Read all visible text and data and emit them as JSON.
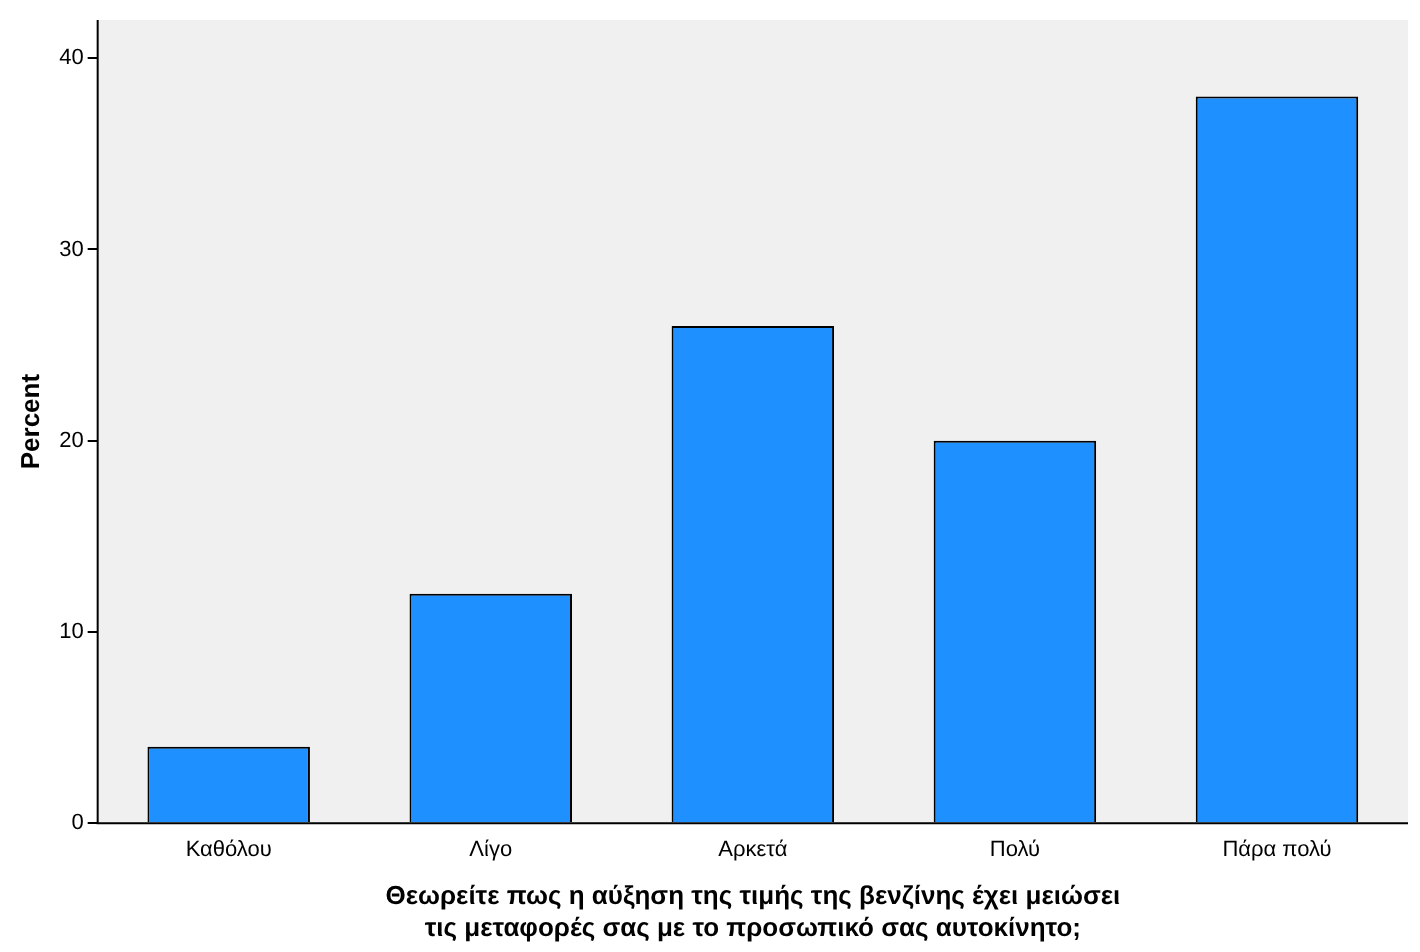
{
  "chart_data": {
    "type": "bar",
    "categories": [
      "Καθόλου",
      "Λίγο",
      "Αρκετά",
      "Πολύ",
      "Πάρα πολύ"
    ],
    "values": [
      4,
      12,
      26,
      20,
      38
    ],
    "color": "#1e90ff",
    "ylabel": "Percent",
    "xlabel": "Θεωρείτε πως η αύξηση της τιμής της βενζίνης έχει μειώσει τις μεταφορές σας με το προσωπικό σας αυτοκίνητο;",
    "ylim": [
      0,
      42
    ],
    "yticks": [
      0,
      10,
      20,
      30,
      40
    ],
    "grid": false,
    "legend": false
  }
}
